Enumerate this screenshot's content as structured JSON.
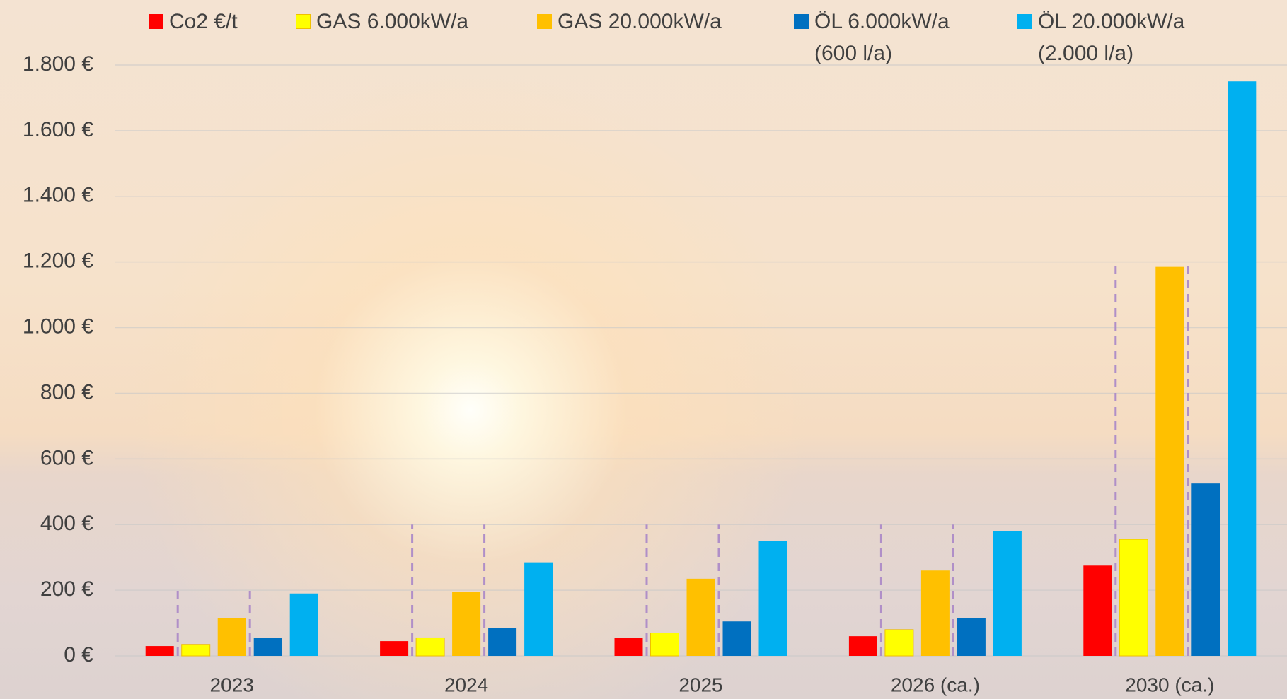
{
  "chart_data": {
    "type": "bar",
    "categories": [
      "2023",
      "2024",
      "2025",
      "2026 (ca.)",
      "2030 (ca.)"
    ],
    "series": [
      {
        "name": "Co2 €/t",
        "color": "#ff0000",
        "values": [
          30,
          45,
          55,
          60,
          275
        ]
      },
      {
        "name": "GAS 6.000kW/a",
        "color": "#ffff00",
        "values": [
          35,
          55,
          70,
          80,
          355
        ]
      },
      {
        "name": "GAS 20.000kW/a",
        "color": "#ffc000",
        "values": [
          115,
          195,
          235,
          260,
          1185
        ]
      },
      {
        "name": "ÖL 6.000kW/a\n(600 l/a)",
        "color": "#0070c0",
        "values": [
          55,
          85,
          105,
          115,
          525
        ]
      },
      {
        "name": "ÖL 20.000kW/a\n(2.000 l/a)",
        "color": "#00b0f0",
        "values": [
          190,
          285,
          350,
          380,
          1750
        ]
      }
    ],
    "ylim": [
      0,
      1800
    ],
    "yticks": [
      {
        "value": 0,
        "label": "0 €"
      },
      {
        "value": 200,
        "label": "200 €"
      },
      {
        "value": 400,
        "label": "400 €"
      },
      {
        "value": 600,
        "label": "600 €"
      },
      {
        "value": 800,
        "label": "800 €"
      },
      {
        "value": 1000,
        "label": "1.000 €"
      },
      {
        "value": 1200,
        "label": "1.200 €"
      },
      {
        "value": 1400,
        "label": "1.400 €"
      },
      {
        "value": 1600,
        "label": "1.600 €"
      },
      {
        "value": 1800,
        "label": "1.800 €"
      }
    ],
    "grid": true,
    "legend": "top"
  }
}
